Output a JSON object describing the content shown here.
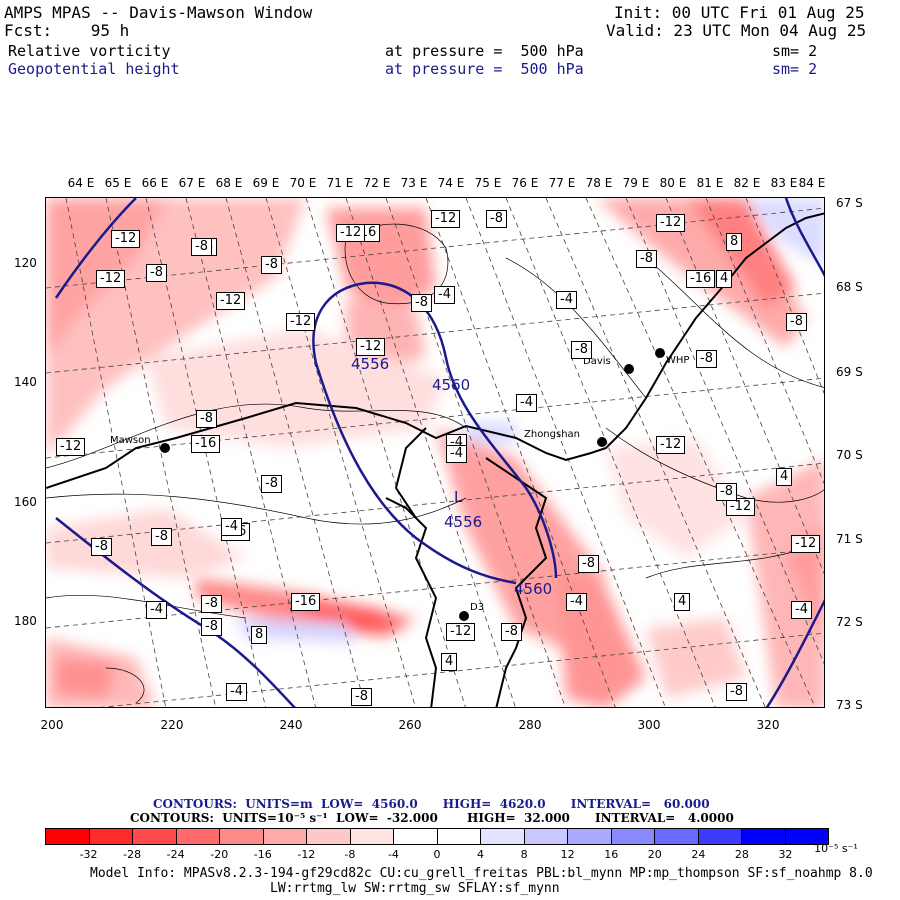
{
  "header": {
    "title": "AMPS MPAS -- Davis-Mawson Window",
    "init": "Init: 00 UTC Fri 01 Aug 25",
    "fcst": "Fcst:    95 h",
    "valid": "Valid: 23 UTC Mon 04 Aug 25",
    "field1": {
      "name": "Relative vorticity",
      "level": "at pressure =  500 hPa",
      "sm": "sm= 2"
    },
    "field2": {
      "name": "Geopotential height",
      "level": "at pressure =  500 hPa",
      "sm": "sm= 2"
    }
  },
  "axes": {
    "top_lon": [
      "64 E",
      "65 E",
      "66 E",
      "67 E",
      "68 E",
      "69 E",
      "70 E",
      "71 E",
      "72 E",
      "73 E",
      "74 E",
      "75 E",
      "76 E",
      "77 E",
      "78 E",
      "79 E",
      "80 E",
      "81 E",
      "82 E",
      "83 E",
      "84 E"
    ],
    "left_y": [
      "120",
      "140",
      "160",
      "180"
    ],
    "right_lat": [
      "67 S",
      "68 S",
      "69 S",
      "70 S",
      "71 S",
      "72 S",
      "73 S"
    ],
    "bottom_x": [
      "200",
      "220",
      "240",
      "260",
      "280",
      "300",
      "320"
    ]
  },
  "places": [
    {
      "name": "Mawson"
    },
    {
      "name": "Zhongshan"
    },
    {
      "name": "Davis"
    },
    {
      "name": "WHP"
    },
    {
      "name": "D3"
    }
  ],
  "height_contours": [
    "4556",
    "4560",
    "4556",
    "4560"
  ],
  "height_low_marker": "L",
  "vorticity_labels": [
    "-12",
    "-8",
    "-16",
    "-12",
    "-8",
    "-4",
    "-12",
    "-8",
    "-12",
    "-8",
    "-12",
    "-16",
    "-12",
    "-8",
    "-8",
    "-4",
    "-8",
    "-4",
    "-8",
    "-4",
    "-12",
    "-8",
    "-8",
    "-16",
    "-12",
    "-8",
    "-4",
    "-16",
    "-8",
    "-4",
    "4",
    "-8",
    "-4",
    "-8",
    "-12",
    "8",
    "8",
    "4",
    "-4",
    "-8",
    "-12",
    "-4",
    "4",
    "-8",
    "-8",
    "-4",
    "-16",
    "-12",
    "-12",
    "-8",
    "-8",
    "-8",
    "-12",
    "-4",
    "-8",
    "4"
  ],
  "legend": {
    "contours1": "CONTOURS:  UNITS=m  LOW=  4560.0      HIGH=  4620.0      INTERVAL=   60.000",
    "contours2": "CONTOURS:  UNITS=10⁻⁵ s⁻¹  LOW=  -32.000       HIGH=  32.000      INTERVAL=   4.0000",
    "colors": [
      "#ff0000",
      "#ff2a2a",
      "#ff4b4b",
      "#ff6a6a",
      "#ff8a8a",
      "#ffaaaa",
      "#ffc8c8",
      "#ffe4e4",
      "#ffffff",
      "#ffffff",
      "#e4e4ff",
      "#c8c8ff",
      "#aaaaff",
      "#8a8aff",
      "#6a6aff",
      "#3c3cff",
      "#0000ff",
      "#0000ff"
    ],
    "ticks": [
      "-32",
      "-28",
      "-24",
      "-20",
      "-16",
      "-12",
      "-8",
      "-4",
      "0",
      "4",
      "8",
      "12",
      "16",
      "20",
      "24",
      "28",
      "32"
    ],
    "unit": "10⁻⁵ s⁻¹"
  },
  "model_info": {
    "line1": "Model Info: MPASv8.2.3-194-gf29cd82c CU:cu_grell_freitas PBL:bl_mynn MP:mp_thompson SF:sf_noahmp 8.0",
    "line2": "LW:rrtmg_lw SW:rrtmg_sw SFLAY:sf_mynn"
  }
}
